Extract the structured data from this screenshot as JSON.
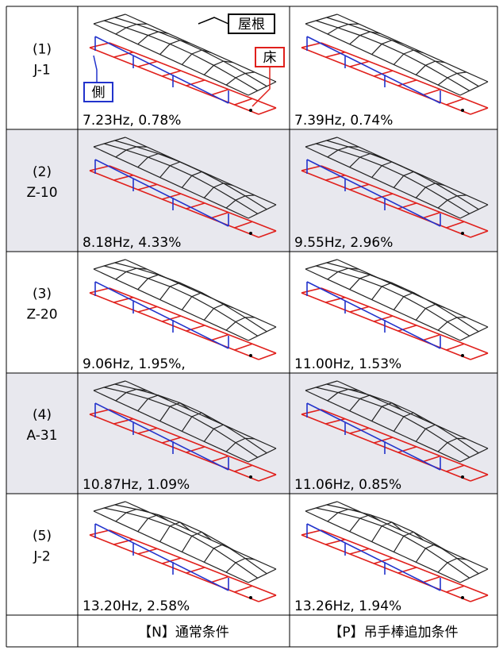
{
  "rows": [
    {
      "label": [
        "(1)",
        "J-1"
      ],
      "n": "7.23Hz, 0.78%",
      "p": "7.39Hz, 0.74%"
    },
    {
      "label": [
        "(2)",
        "Z-10"
      ],
      "n": "8.18Hz, 4.33%",
      "p": "9.55Hz, 2.96%"
    },
    {
      "label": [
        "(3)",
        "Z-20"
      ],
      "n": "9.06Hz, 1.95%,",
      "p": "11.00Hz, 1.53%"
    },
    {
      "label": [
        "(4)",
        "A-31"
      ],
      "n": "10.87Hz, 1.09%",
      "p": "11.06Hz, 0.85%"
    },
    {
      "label": [
        "(5)",
        "J-2"
      ],
      "n": "13.20Hz, 2.58%",
      "p": "13.26Hz, 1.94%"
    }
  ],
  "annotations": {
    "roof": "屋根",
    "floor": "床",
    "side": "側"
  },
  "footer": {
    "n": "【N】通常条件",
    "p": "【P】吊手棒追加条件"
  }
}
